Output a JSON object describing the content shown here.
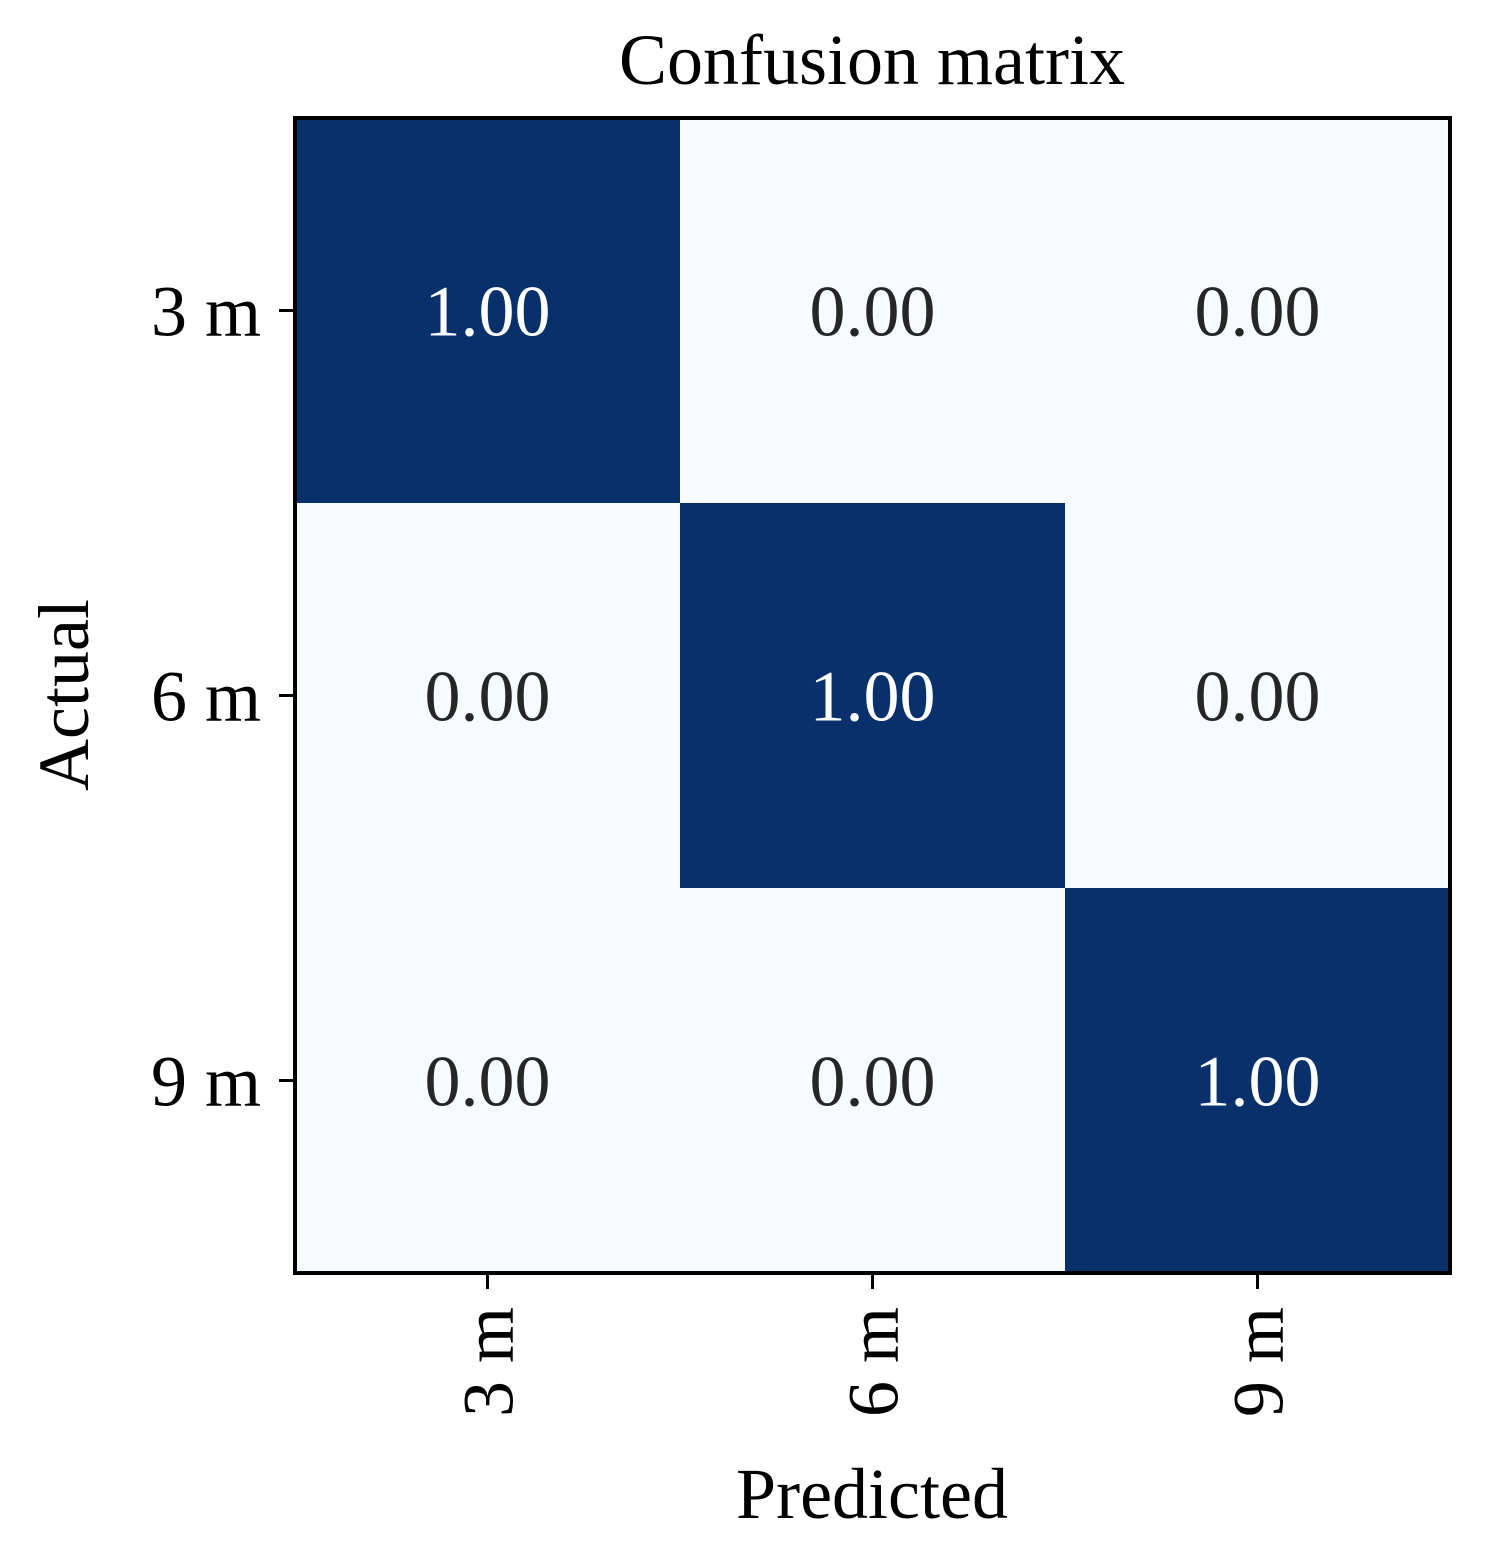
{
  "chart_data": {
    "type": "heatmap",
    "title": "Confusion matrix",
    "xlabel": "Predicted",
    "ylabel": "Actual",
    "x_categories": [
      "3 m",
      "6 m",
      "9 m"
    ],
    "y_categories": [
      "3 m",
      "6 m",
      "9 m"
    ],
    "values": [
      [
        1.0,
        0.0,
        0.0
      ],
      [
        0.0,
        1.0,
        0.0
      ],
      [
        0.0,
        0.0,
        1.0
      ]
    ],
    "value_labels": [
      [
        "1.00",
        "0.00",
        "0.00"
      ],
      [
        "0.00",
        "1.00",
        "0.00"
      ],
      [
        "0.00",
        "0.00",
        "1.00"
      ]
    ],
    "value_range": [
      0,
      1
    ],
    "colormap": "Blues",
    "colors": {
      "low": "#f7fbff",
      "high": "#08306b",
      "text_on_low": "#262626",
      "text_on_high": "#ffffff",
      "frame": "#000000"
    },
    "grid": false,
    "legend": "none"
  }
}
